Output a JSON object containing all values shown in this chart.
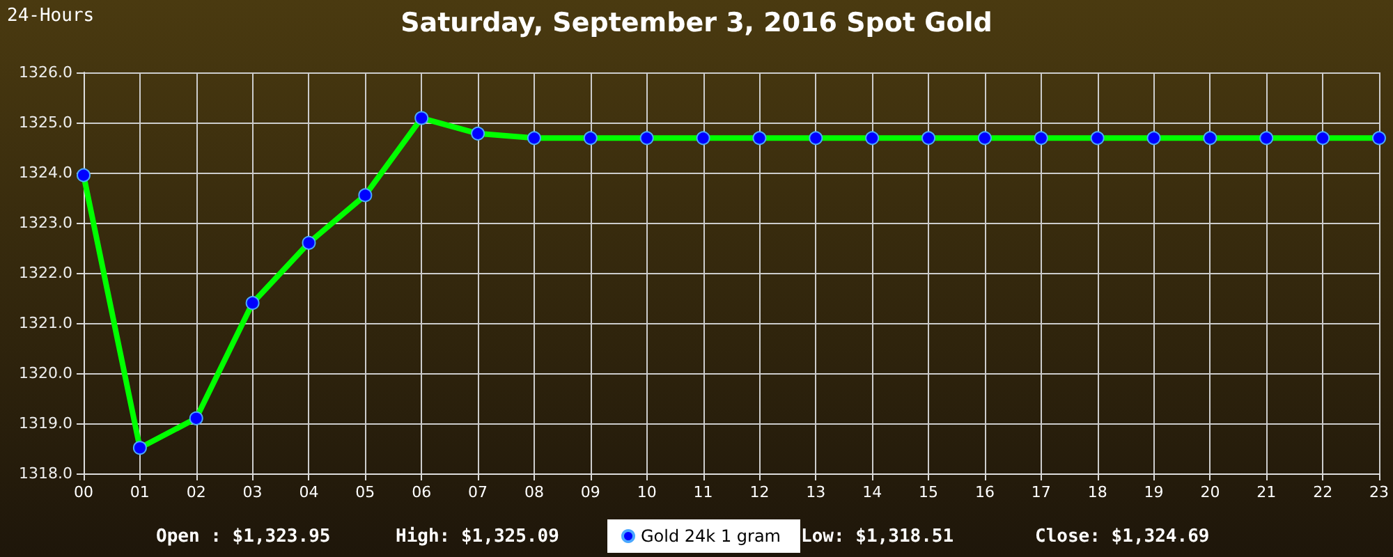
{
  "chart_data": {
    "type": "line",
    "title": "Saturday, September 3, 2016 Spot Gold",
    "categories": [
      "00",
      "01",
      "02",
      "03",
      "04",
      "05",
      "06",
      "07",
      "08",
      "09",
      "10",
      "11",
      "12",
      "13",
      "14",
      "15",
      "16",
      "17",
      "18",
      "19",
      "20",
      "21",
      "22",
      "23"
    ],
    "series": [
      {
        "name": "Gold 24k 1 gram",
        "color": "#00ff00",
        "values": [
          1323.95,
          1318.51,
          1319.1,
          1321.4,
          1322.6,
          1323.55,
          1325.09,
          1324.78,
          1324.69,
          1324.69,
          1324.69,
          1324.69,
          1324.69,
          1324.69,
          1324.69,
          1324.69,
          1324.69,
          1324.69,
          1324.69,
          1324.69,
          1324.69,
          1324.69,
          1324.69,
          1324.69
        ]
      }
    ],
    "ylim": [
      1318,
      1326
    ],
    "yticks": [
      {
        "value": 1318,
        "label": "1318.0"
      },
      {
        "value": 1319,
        "label": "1319.0"
      },
      {
        "value": 1320,
        "label": "1320.0"
      },
      {
        "value": 1321,
        "label": "1321.0"
      },
      {
        "value": 1322,
        "label": "1322.0"
      },
      {
        "value": 1323,
        "label": "1323.0"
      },
      {
        "value": 1324,
        "label": "1324.0"
      },
      {
        "value": 1325,
        "label": "1325.0"
      },
      {
        "value": 1326,
        "label": "1326.0"
      }
    ],
    "grid": true,
    "legend": "bottom",
    "marker": "circle",
    "line_style": "solid",
    "annotations": [
      "24-Hours",
      "Open : $1,323.95",
      "High: $1,325.09",
      "Low: $1,318.51",
      "Close: $1,324.69"
    ]
  }
}
